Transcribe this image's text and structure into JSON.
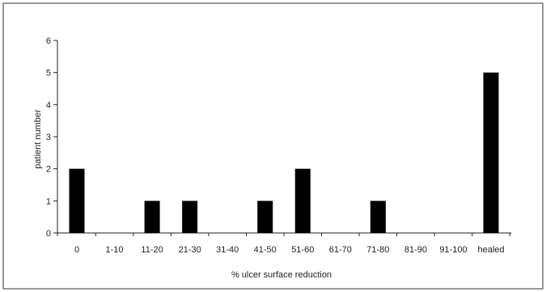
{
  "chart_data": {
    "type": "bar",
    "title": "",
    "xlabel": "% ulcer surface reduction",
    "ylabel": "patient number",
    "categories": [
      "0",
      "1-10",
      "11-20",
      "21-30",
      "31-40",
      "41-50",
      "51-60",
      "61-70",
      "71-80",
      "81-90",
      "91-100",
      "healed"
    ],
    "values": [
      2,
      0,
      1,
      1,
      0,
      1,
      2,
      0,
      1,
      0,
      0,
      5
    ],
    "ylim": [
      0,
      6
    ],
    "yticks": [
      "0",
      "1",
      "2",
      "3",
      "4",
      "5",
      "6"
    ],
    "grid": false,
    "legend": "none",
    "bar_color": "#000000",
    "axis_color": "#222222",
    "frame_color": "#333333"
  }
}
